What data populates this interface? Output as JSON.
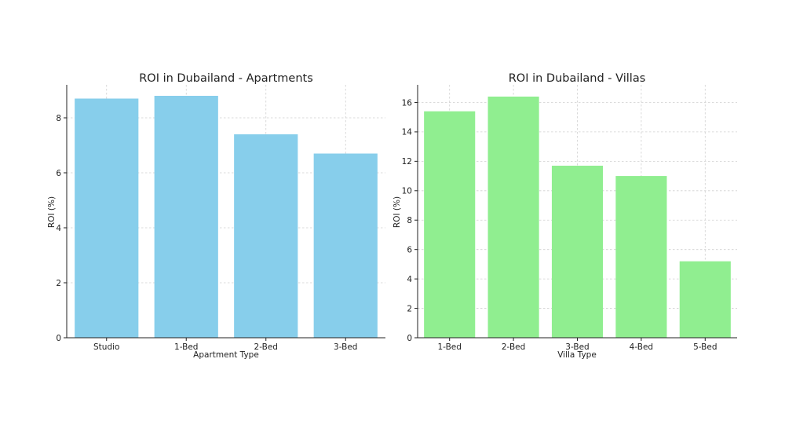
{
  "chart_data": [
    {
      "type": "bar",
      "title": "ROI in Dubailand - Apartments",
      "xlabel": "Apartment Type",
      "ylabel": "ROI (%)",
      "categories": [
        "Studio",
        "1-Bed",
        "2-Bed",
        "3-Bed"
      ],
      "values": [
        8.7,
        8.8,
        7.4,
        6.7
      ],
      "ylim": [
        0,
        9.2
      ],
      "yticks": [
        0,
        2,
        4,
        6,
        8
      ],
      "color": "#87ceeb",
      "grid": true
    },
    {
      "type": "bar",
      "title": "ROI in Dubailand - Villas",
      "xlabel": "Villa Type",
      "ylabel": "ROI (%)",
      "categories": [
        "1-Bed",
        "2-Bed",
        "3-Bed",
        "4-Bed",
        "5-Bed"
      ],
      "values": [
        15.4,
        16.4,
        11.7,
        11.0,
        5.2
      ],
      "ylim": [
        0,
        17.2
      ],
      "yticks": [
        0,
        2,
        4,
        6,
        8,
        10,
        12,
        14,
        16
      ],
      "color": "#90ee90",
      "grid": true
    }
  ]
}
